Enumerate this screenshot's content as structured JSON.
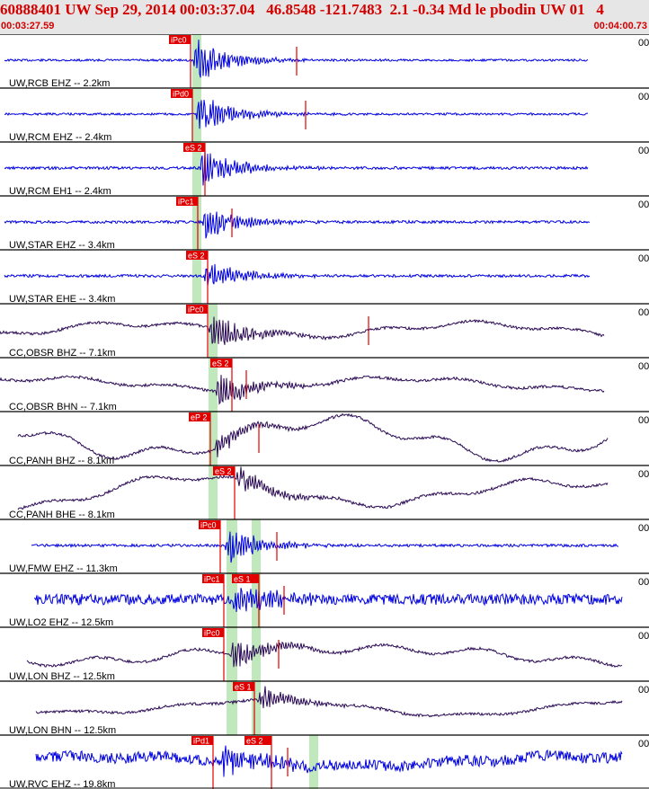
{
  "header": {
    "title": "60888401 UW Sep 29, 2014 00:03:37.04   46.8548 -121.7483  2.1 -0.34 Md le pbodin UW 01   4",
    "start_time": "00:03:27.59",
    "end_time": "00:04:00.73"
  },
  "colors": {
    "header_bg": "#e6e6e6",
    "header_text": "#d40000",
    "trace_blue": "#0000e0",
    "trace_dark": "#2a0a55",
    "pick_red": "#e00000",
    "window_green": "#b6e3b0",
    "separator": "#000000"
  },
  "traces": [
    {
      "station": "UW,RCB EHZ -- 2.2km",
      "pick": "iPc0",
      "right_value": "00",
      "color": "blue"
    },
    {
      "station": "UW,RCM EHZ -- 2.4km",
      "pick": "iPd0",
      "right_value": "00",
      "color": "blue"
    },
    {
      "station": "UW,RCM EH1 -- 2.4km",
      "pick": "eS 2",
      "right_value": "00",
      "color": "blue"
    },
    {
      "station": "UW,STAR EHZ -- 3.4km",
      "pick": "iPc1",
      "right_value": "00",
      "color": "blue"
    },
    {
      "station": "UW,STAR EHE -- 3.4km",
      "pick": "eS 2",
      "right_value": "00",
      "color": "blue"
    },
    {
      "station": "CC,OBSR BHZ -- 7.1km",
      "pick": "iPc0",
      "right_value": "00",
      "color": "dark"
    },
    {
      "station": "CC,OBSR BHN -- 7.1km",
      "pick": "eS 2",
      "right_value": "00",
      "color": "dark"
    },
    {
      "station": "CC,PANH BHZ -- 8.1km",
      "pick": "eP 2",
      "right_value": "00",
      "color": "dark"
    },
    {
      "station": "CC,PANH BHE -- 8.1km",
      "pick": "eS 2",
      "right_value": "00",
      "color": "dark"
    },
    {
      "station": "UW,FMW EHZ -- 11.3km",
      "pick": "iPc0",
      "right_value": "00",
      "color": "blue"
    },
    {
      "station": "UW,LO2 EHZ -- 12.5km",
      "pick": "iPc1",
      "pick2": "eS 1",
      "right_value": "00",
      "color": "blue"
    },
    {
      "station": "UW,LON BHZ -- 12.5km",
      "pick": "iPc0",
      "right_value": "00",
      "color": "dark"
    },
    {
      "station": "UW,LON BHN -- 12.5km",
      "pick": "eS 1",
      "right_value": "00",
      "color": "dark"
    },
    {
      "station": "UW,RVC EHZ -- 19.8km",
      "pick": "iPd1",
      "pick2": "eS 2",
      "right_value": "00",
      "color": "blue"
    }
  ]
}
